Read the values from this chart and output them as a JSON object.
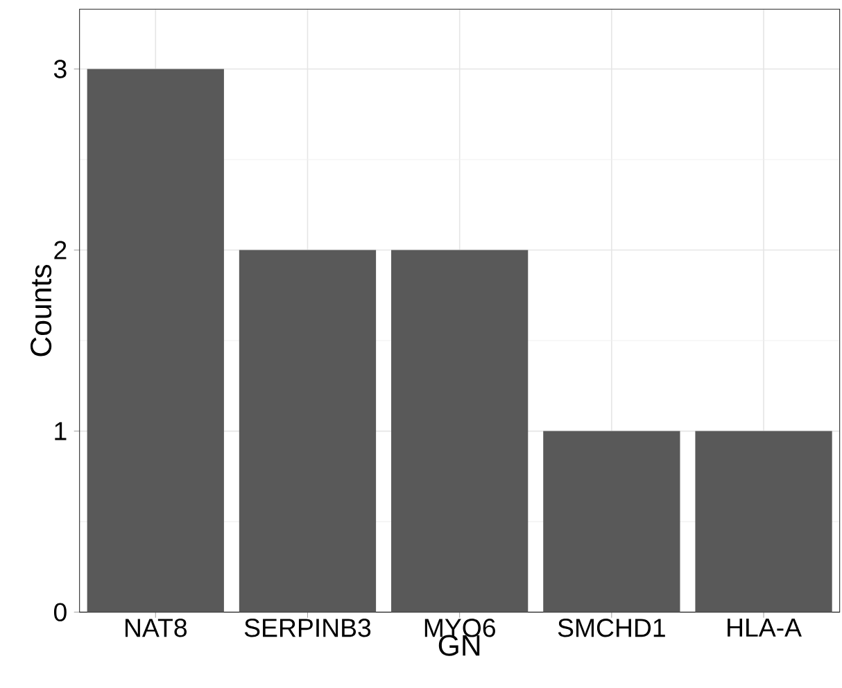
{
  "chart_data": {
    "type": "bar",
    "xlabel": "GN",
    "ylabel": "Counts",
    "categories": [
      "NAT8",
      "SERPINB3",
      "MYO6",
      "SMCHD1",
      "HLA-A"
    ],
    "values": [
      3,
      2,
      2,
      1,
      1
    ],
    "color": "#595959",
    "ylim": [
      0,
      3.33
    ],
    "yticks": [
      0,
      1,
      2,
      3
    ],
    "grid": true
  }
}
